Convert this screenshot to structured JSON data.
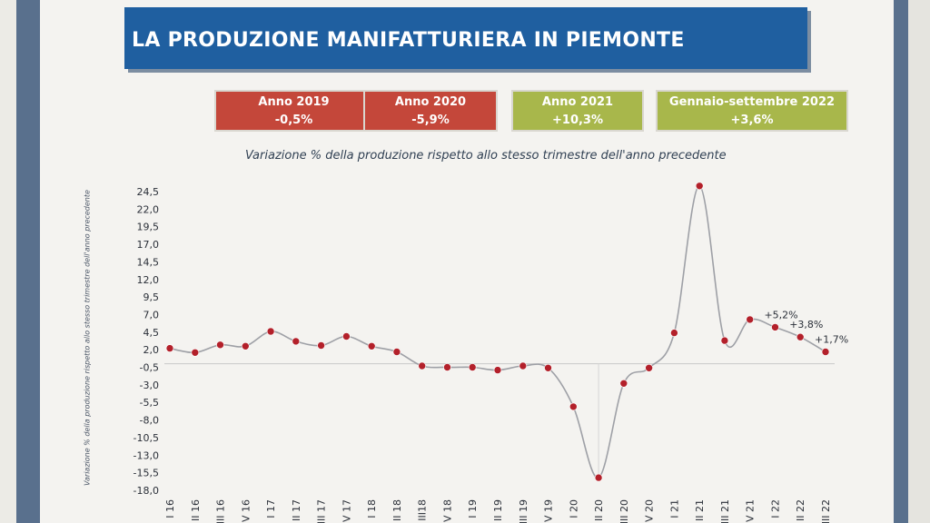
{
  "title": "LA PRODUZIONE MANIFATTURIERA IN PIEMONTE",
  "badges": [
    {
      "label": "Anno 2019",
      "value": "-0,5%",
      "color": "#c4473a"
    },
    {
      "label": "Anno 2020",
      "value": "-5,9%",
      "color": "#c4473a"
    },
    {
      "label": "Anno 2021",
      "value": "+10,3%",
      "color": "#a8b74b"
    },
    {
      "label": "Gennaio-settembre 2022",
      "value": "+3,6%",
      "color": "#a8b74b"
    }
  ],
  "chart_data": {
    "type": "line",
    "title": "Variazione % della produzione rispetto allo stesso trimestre dell'anno precedente",
    "ylabel": "Variazione % della produzione rispetto allo stesso trimestre dell'anno precedente",
    "xlabel": "",
    "ylim": [
      -18.0,
      24.5
    ],
    "yticks": [
      "24,5",
      "22,0",
      "19,5",
      "17,0",
      "14,5",
      "12,0",
      "9,5",
      "7,0",
      "4,5",
      "2,0",
      "-0,5",
      "-3,0",
      "-5,5",
      "-8,0",
      "-10,5",
      "-13,0",
      "-15,5",
      "-18,0"
    ],
    "x": [
      "I 16",
      "II 16",
      "III 16",
      "IV 16",
      "I 17",
      "II 17",
      "III 17",
      "IV 17",
      "I 18",
      "II 18",
      "III18",
      "IV 18",
      "I 19",
      "II 19",
      "III 19",
      "IV 19",
      "I 20",
      "II 20",
      "III 20",
      "IV 20",
      "I 21",
      "II 21",
      "III 21",
      "IV 21",
      "I 22",
      "II 22",
      "III 22"
    ],
    "x_visible": [
      "I 16",
      "II 16",
      "III 16",
      "IV 16",
      "I 17",
      "II 17",
      "III 17",
      "IV 17",
      "I 18",
      "II 18",
      "III18",
      "IV 18",
      "I 19",
      "II 19",
      "III 19",
      "IV 19",
      "I 20",
      "II 20",
      "III 20",
      "IV 20",
      "I 21",
      "II 21",
      "III 21",
      "IV 21",
      "I 22",
      "II 22",
      "III 22"
    ],
    "x_shown": [
      "I 16",
      "II 16",
      "III 16",
      "IV 16",
      "I 17",
      "II 17",
      "III 17",
      "IV 17",
      "I 18",
      "II 18",
      "III18",
      "IV 18",
      "I 19",
      "II 19",
      "III 19",
      "IV 19",
      "I 20",
      "II 20",
      "III 20",
      "IV 20",
      "I 21",
      "II 21",
      "III 21",
      "IV 21",
      "I 22",
      "II 22",
      "III 22"
    ],
    "series": [
      {
        "values": [
          2.2,
          1.6,
          2.7,
          2.5,
          4.6,
          3.2,
          2.6,
          3.9,
          2.5,
          1.7,
          -0.3,
          -0.5,
          -0.5,
          -0.9,
          -0.3,
          -0.6,
          -6.1,
          -16.2,
          -2.8,
          -0.6,
          4.4,
          25.3,
          3.3,
          6.3,
          5.2,
          3.8,
          1.7
        ],
        "color": "#9ea0a6",
        "marker_color": "#b3202a"
      }
    ],
    "annotations": [
      {
        "label": "+5,2%",
        "index": 24
      },
      {
        "label": "+3,8%",
        "index": 25
      },
      {
        "label": "+1,7%",
        "index": 26
      }
    ],
    "grid": false
  }
}
